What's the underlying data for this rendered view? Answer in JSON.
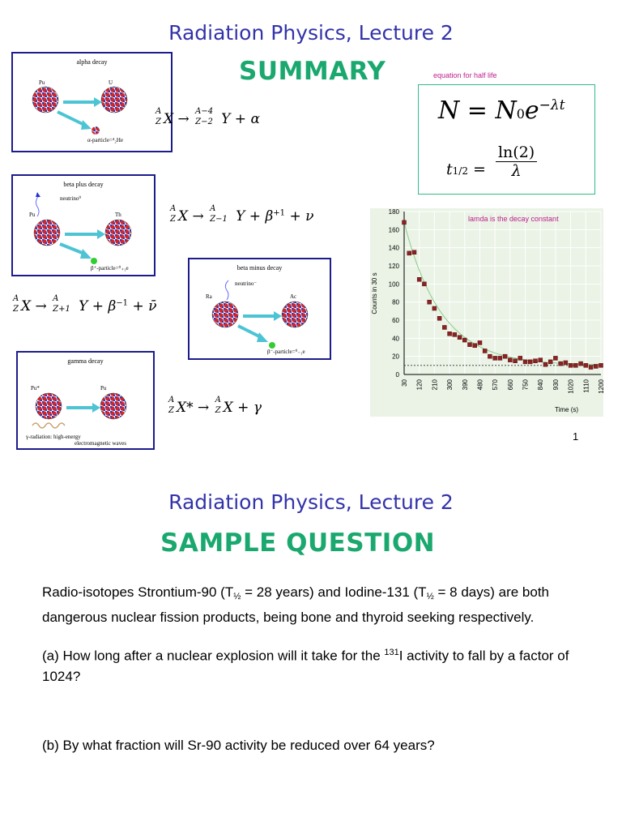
{
  "slide1": {
    "lecture_title": "Radiation Physics, Lecture 2",
    "heading": "SUMMARY",
    "half_life_note": "equation for half life",
    "decay_constant_note": "lamda is the decay constant",
    "page_number": "1",
    "alpha": {
      "title": "alpha decay",
      "parent": "Pu",
      "daughter": "U",
      "particle": "α-particle=⁴₂He"
    },
    "beta_plus": {
      "title": "beta plus decay",
      "neutrino": "neutrino⁰",
      "parent": "Pu",
      "daughter": "Th",
      "particle": "β⁺-particle=⁰₊₁e"
    },
    "beta_minus": {
      "title": "beta minus decay",
      "neutrino": "neutrino⁻",
      "parent": "Ra",
      "daughter": "Ac",
      "particle": "β⁻-particle=⁰₋₁e"
    },
    "gamma": {
      "title": "gamma decay",
      "parent": "Pu*",
      "daughter": "Pu",
      "note_line1": "γ-radiation: high-energy",
      "note_line2": "electromagnetic waves"
    }
  },
  "slide2": {
    "lecture_title": "Radiation Physics, Lecture 2",
    "heading": "SAMPLE QUESTION",
    "p1_a": "Radio-isotopes Strontium-90 (T",
    "half_sub": "½",
    "p1_b": " = 28 years) and Iodine-131 (T",
    "p1_c": " = 8 days) are both dangerous nuclear fission products, being bone and thyroid seeking respectively.",
    "p2_a": "(a) How long after a nuclear explosion will it take for the ",
    "p2_sup": "131",
    "p2_b": "I activity to fall by a factor of 1024?",
    "p3": "(b) By what fraction will Sr-90 activity be reduced over 64 years?"
  },
  "chart_data": {
    "type": "scatter",
    "title": "",
    "xlabel": "Time (s)",
    "ylabel": "Counts in 30 s",
    "ylim": [
      0,
      180
    ],
    "yticks": [
      0,
      20,
      40,
      60,
      80,
      100,
      120,
      140,
      160,
      180
    ],
    "xlim": [
      30,
      1200
    ],
    "xticks": [
      30,
      120,
      210,
      300,
      390,
      480,
      570,
      660,
      750,
      840,
      930,
      1020,
      1110,
      1200
    ],
    "background_baseline": 10,
    "x": [
      30,
      60,
      90,
      120,
      150,
      180,
      210,
      240,
      270,
      300,
      330,
      360,
      390,
      420,
      450,
      480,
      510,
      540,
      570,
      600,
      630,
      660,
      690,
      720,
      750,
      780,
      810,
      840,
      870,
      900,
      930,
      960,
      990,
      1020,
      1050,
      1080,
      1110,
      1140,
      1170,
      1200
    ],
    "y": [
      168,
      134,
      135,
      105,
      100,
      80,
      73,
      62,
      52,
      45,
      44,
      41,
      38,
      33,
      32,
      35,
      26,
      20,
      18,
      18,
      20,
      16,
      15,
      18,
      14,
      14,
      15,
      16,
      11,
      14,
      18,
      12,
      13,
      10,
      10,
      12,
      10,
      8,
      9,
      10
    ],
    "grid": true,
    "fit_curve": "exponential"
  }
}
